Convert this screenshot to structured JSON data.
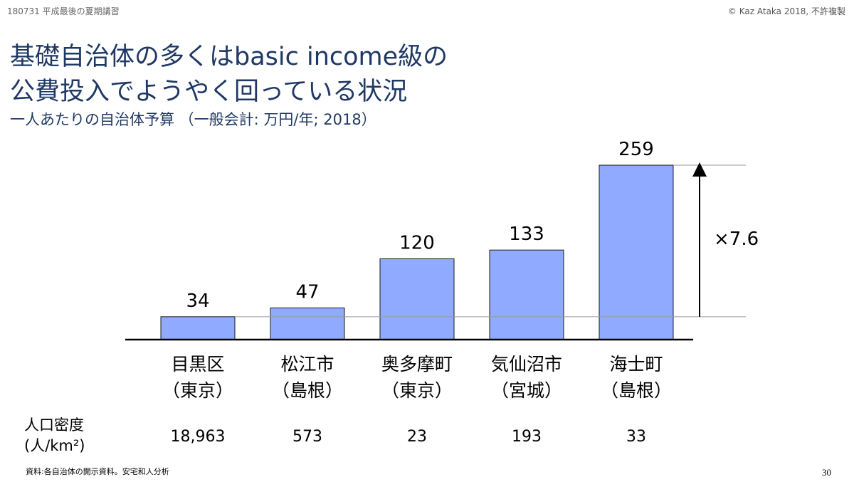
{
  "header": {
    "left": "180731 平成最後の夏期講習",
    "right": "© Kaz Ataka 2018, 不許複製"
  },
  "title": {
    "line1": "基礎自治体の多くはbasic income級の",
    "line2": "公費投入でようやく回っている状況"
  },
  "subtitle": "一人あたりの自治体予算 （一般会計: 万円/年; 2018）",
  "chart_data": {
    "type": "bar",
    "categories": [
      {
        "name": "目黒区",
        "region": "（東京）"
      },
      {
        "name": "松江市",
        "region": "（島根）"
      },
      {
        "name": "奥多摩町",
        "region": "（東京）"
      },
      {
        "name": "気仙沼市",
        "region": "（宮城）"
      },
      {
        "name": "海士町",
        "region": "（島根）"
      }
    ],
    "values": [
      34,
      47,
      120,
      133,
      259
    ],
    "ylim": [
      0,
      259
    ],
    "bar_color": "#8faaff",
    "annotation": {
      "text": "×7.6",
      "from_index": 0,
      "to_index": 4
    }
  },
  "density": {
    "label_line1": "人口密度",
    "label_line2": "(人/km²)",
    "values": [
      "18,963",
      "573",
      "23",
      "193",
      "33"
    ]
  },
  "source": "資料:各自治体の開示資料。安宅和人分析",
  "page_number": "30"
}
